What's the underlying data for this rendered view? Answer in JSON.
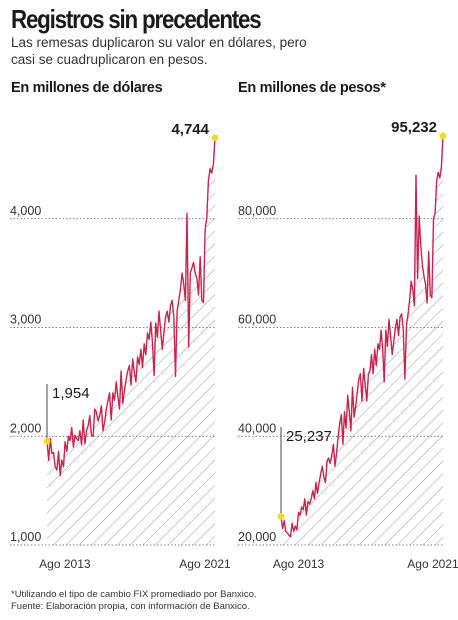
{
  "header": {
    "title": "Registros sin precedentes",
    "subtitle": "Las remesas duplicaron su valor en dólares, pero casi se cuadruplicaron en pesos."
  },
  "colors": {
    "line": "#c8244e",
    "marker": "#f0dc1e",
    "hatch": "#9a9a9a",
    "grid": "#555555",
    "text": "#1a1a1a"
  },
  "chart_data": [
    {
      "type": "area",
      "title": "En millones de dólares",
      "ylim": [
        1000,
        5000
      ],
      "yticks": [
        1000,
        2000,
        3000,
        4000
      ],
      "ytick_labels": [
        "1,000",
        "2,000",
        "3,000",
        "4,000"
      ],
      "xlim": [
        2013.083,
        2021.583
      ],
      "xticks": [
        2013.583,
        2021.583
      ],
      "xtick_labels": [
        "Ago 2013",
        "Ago 2021"
      ],
      "grid": true,
      "annotations": [
        {
          "label": "1,954",
          "x": 2013.083,
          "y": 1954
        },
        {
          "label": "4,744",
          "x": 2021.583,
          "y": 4744
        }
      ],
      "series": [
        {
          "x": [
            2013.083,
            2013.167,
            2013.25,
            2013.333,
            2013.417,
            2013.5,
            2013.583,
            2013.667,
            2013.75,
            2013.833,
            2013.917,
            2014.0,
            2014.083,
            2014.167,
            2014.25,
            2014.333,
            2014.417,
            2014.5,
            2014.583,
            2014.667,
            2014.75,
            2014.833,
            2014.917,
            2015.0,
            2015.083,
            2015.167,
            2015.25,
            2015.333,
            2015.417,
            2015.5,
            2015.583,
            2015.667,
            2015.75,
            2015.833,
            2015.917,
            2016.0,
            2016.083,
            2016.167,
            2016.25,
            2016.333,
            2016.417,
            2016.5,
            2016.583,
            2016.667,
            2016.75,
            2016.833,
            2016.917,
            2017.0,
            2017.083,
            2017.167,
            2017.25,
            2017.333,
            2017.417,
            2017.5,
            2017.583,
            2017.667,
            2017.75,
            2017.833,
            2017.917,
            2018.0,
            2018.083,
            2018.167,
            2018.25,
            2018.333,
            2018.417,
            2018.5,
            2018.583,
            2018.667,
            2018.75,
            2018.833,
            2018.917,
            2019.0,
            2019.083,
            2019.167,
            2019.25,
            2019.333,
            2019.417,
            2019.5,
            2019.583,
            2019.667,
            2019.75,
            2019.833,
            2019.917,
            2020.0,
            2020.083,
            2020.167,
            2020.25,
            2020.333,
            2020.417,
            2020.5,
            2020.583,
            2020.667,
            2020.75,
            2020.833,
            2020.917,
            2021.0,
            2021.083,
            2021.167,
            2021.25,
            2021.333,
            2021.417,
            2021.5,
            2021.583
          ],
          "values": [
            1954,
            1780,
            1980,
            1840,
            1850,
            1720,
            1690,
            1860,
            1640,
            1780,
            1720,
            1950,
            1860,
            2000,
            1960,
            2080,
            1900,
            2010,
            1980,
            1960,
            2050,
            1920,
            2150,
            1930,
            2050,
            2100,
            2190,
            2010,
            2000,
            2250,
            2220,
            2140,
            2190,
            2280,
            2050,
            2130,
            2250,
            2330,
            2400,
            2150,
            2400,
            2330,
            2500,
            2370,
            2250,
            2600,
            2300,
            2420,
            2520,
            2600,
            2650,
            2470,
            2710,
            2590,
            2500,
            2730,
            2660,
            2800,
            2630,
            2850,
            2750,
            2950,
            2890,
            3050,
            2870,
            2560,
            3040,
            2910,
            3150,
            2980,
            2800,
            2950,
            3100,
            3150,
            3050,
            3200,
            3250,
            3100,
            2550,
            3150,
            3250,
            3350,
            3500,
            3400,
            3250,
            4050,
            2820,
            3500,
            3550,
            3600,
            3500,
            3450,
            3300,
            3650,
            3250,
            3230,
            3900,
            4010,
            4350,
            4460,
            4420,
            4500,
            4744
          ]
        }
      ]
    },
    {
      "type": "area",
      "title": "En millones de pesos*",
      "ylim": [
        20000,
        100000
      ],
      "yticks": [
        20000,
        40000,
        60000,
        80000
      ],
      "ytick_labels": [
        "20,000",
        "40,000",
        "60,000",
        "80,000"
      ],
      "xlim": [
        2013.083,
        2021.583
      ],
      "xticks": [
        2013.583,
        2021.583
      ],
      "xtick_labels": [
        "Ago 2013",
        "Ago 2021"
      ],
      "grid": true,
      "annotations": [
        {
          "label": "25,237",
          "x": 2013.083,
          "y": 25237
        },
        {
          "label": "95,232",
          "x": 2021.583,
          "y": 95232
        }
      ],
      "series": [
        {
          "x": [
            2013.083,
            2013.167,
            2013.25,
            2013.333,
            2013.417,
            2013.5,
            2013.583,
            2013.667,
            2013.75,
            2013.833,
            2013.917,
            2014.0,
            2014.083,
            2014.167,
            2014.25,
            2014.333,
            2014.417,
            2014.5,
            2014.583,
            2014.667,
            2014.75,
            2014.833,
            2014.917,
            2015.0,
            2015.083,
            2015.167,
            2015.25,
            2015.333,
            2015.417,
            2015.5,
            2015.583,
            2015.667,
            2015.75,
            2015.833,
            2015.917,
            2016.0,
            2016.083,
            2016.167,
            2016.25,
            2016.333,
            2016.417,
            2016.5,
            2016.583,
            2016.667,
            2016.75,
            2016.833,
            2016.917,
            2017.0,
            2017.083,
            2017.167,
            2017.25,
            2017.333,
            2017.417,
            2017.5,
            2017.583,
            2017.667,
            2017.75,
            2017.833,
            2017.917,
            2018.0,
            2018.083,
            2018.167,
            2018.25,
            2018.333,
            2018.417,
            2018.5,
            2018.583,
            2018.667,
            2018.75,
            2018.833,
            2018.917,
            2019.0,
            2019.083,
            2019.167,
            2019.25,
            2019.333,
            2019.417,
            2019.5,
            2019.583,
            2019.667,
            2019.75,
            2019.833,
            2019.917,
            2020.0,
            2020.083,
            2020.167,
            2020.25,
            2020.333,
            2020.417,
            2020.5,
            2020.583,
            2020.667,
            2020.75,
            2020.833,
            2020.917,
            2021.0,
            2021.083,
            2021.167,
            2021.25,
            2021.333,
            2021.417,
            2021.5,
            2021.583
          ],
          "values": [
            25237,
            23000,
            24500,
            22500,
            22200,
            21800,
            21500,
            24000,
            22500,
            23500,
            22800,
            26000,
            25500,
            27000,
            26500,
            28500,
            25500,
            28000,
            27500,
            28500,
            30000,
            28500,
            31500,
            29500,
            31500,
            33000,
            34500,
            32500,
            31500,
            35500,
            36000,
            35000,
            36500,
            38500,
            34500,
            37000,
            40000,
            42500,
            44000,
            38500,
            44500,
            41500,
            47500,
            44500,
            41000,
            49000,
            43500,
            45500,
            48000,
            50500,
            51500,
            46500,
            52500,
            49500,
            46500,
            51500,
            52000,
            55000,
            51500,
            56000,
            53000,
            57000,
            56000,
            59500,
            56000,
            50000,
            59500,
            56500,
            61500,
            58500,
            55000,
            57500,
            60000,
            61500,
            58500,
            62000,
            62500,
            59500,
            50500,
            60500,
            62500,
            65000,
            68500,
            67000,
            64000,
            88000,
            69000,
            80500,
            75000,
            71500,
            69500,
            68000,
            64500,
            74000,
            66000,
            65500,
            80000,
            81000,
            87000,
            88500,
            87500,
            89500,
            95232
          ]
        }
      ]
    }
  ],
  "footnotes": {
    "note1": "*Utilizando el tipo de cambio FIX promediado por Banxico.",
    "note2": "Fuente: Elaboración propia, con información de Banxico."
  }
}
